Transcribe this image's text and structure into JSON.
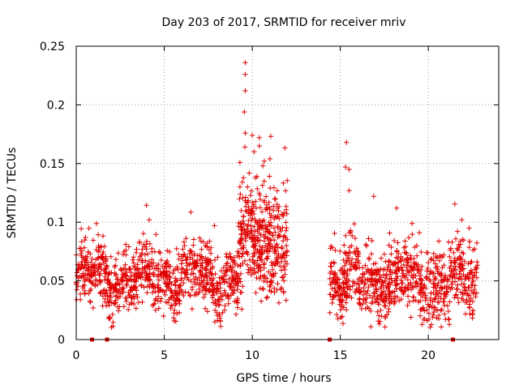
{
  "chart_data": {
    "type": "scatter",
    "title": "Day 203 of 2017, SRMTID for receiver mriv",
    "xlabel": "GPS time / hours",
    "ylabel": "SRMTID / TECUs",
    "xlim": [
      0,
      24
    ],
    "ylim": [
      0,
      0.25
    ],
    "xticks": [
      0,
      5,
      10,
      15,
      20
    ],
    "yticks": [
      0,
      0.05,
      0.1,
      0.15,
      0.2,
      0.25
    ],
    "xtick_labels": [
      "0",
      "5",
      "10",
      "15",
      "20"
    ],
    "ytick_labels": [
      "0",
      "0.05",
      "0.1",
      "0.15",
      "0.2",
      "0.25"
    ],
    "grid": true,
    "marker": "+",
    "color": "#e00000",
    "series": [
      {
        "name": "SRMTID",
        "segments": [
          {
            "x_start": 0.0,
            "x_end": 5.0,
            "mean": 0.052,
            "spread": 0.038,
            "count": 500
          },
          {
            "x_start": 5.0,
            "x_end": 9.2,
            "mean": 0.052,
            "spread": 0.04,
            "count": 420
          },
          {
            "x_start": 9.2,
            "x_end": 12.0,
            "mean": 0.085,
            "spread": 0.07,
            "count": 400
          },
          {
            "x_start": 14.4,
            "x_end": 22.8,
            "mean": 0.05,
            "spread": 0.045,
            "count": 850
          }
        ],
        "peaks": [
          {
            "x": 9.6,
            "y": 0.236
          },
          {
            "x": 9.6,
            "y": 0.226
          },
          {
            "x": 9.6,
            "y": 0.212
          },
          {
            "x": 9.55,
            "y": 0.194
          },
          {
            "x": 9.6,
            "y": 0.176
          },
          {
            "x": 10.0,
            "y": 0.174
          },
          {
            "x": 10.4,
            "y": 0.172
          },
          {
            "x": 10.4,
            "y": 0.165
          },
          {
            "x": 10.1,
            "y": 0.16
          },
          {
            "x": 15.35,
            "y": 0.168
          },
          {
            "x": 15.3,
            "y": 0.147
          },
          {
            "x": 15.5,
            "y": 0.145
          },
          {
            "x": 15.5,
            "y": 0.127
          },
          {
            "x": 4.15,
            "y": 0.102
          },
          {
            "x": 7.85,
            "y": 0.097
          },
          {
            "x": 18.2,
            "y": 0.112
          },
          {
            "x": 21.9,
            "y": 0.102
          },
          {
            "x": 16.9,
            "y": 0.122
          },
          {
            "x": 11.0,
            "y": 0.154
          },
          {
            "x": 10.6,
            "y": 0.148
          },
          {
            "x": 9.3,
            "y": 0.151
          }
        ]
      }
    ],
    "zero_markers": {
      "name": "gap markers",
      "x": [
        0.9,
        1.75,
        14.4,
        21.4
      ],
      "y": 0
    }
  }
}
